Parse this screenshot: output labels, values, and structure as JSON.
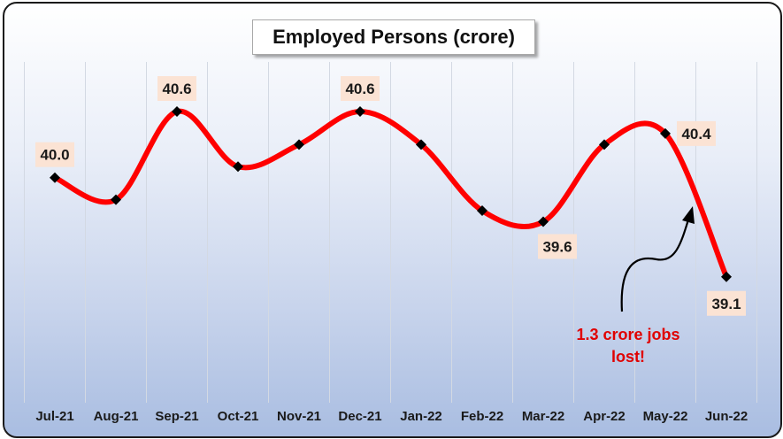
{
  "chart_data": {
    "type": "line",
    "title": "Employed Persons (crore)",
    "categories": [
      "Jul-21",
      "Aug-21",
      "Sep-21",
      "Oct-21",
      "Nov-21",
      "Dec-21",
      "Jan-22",
      "Feb-22",
      "Mar-22",
      "Apr-22",
      "May-22",
      "Jun-22"
    ],
    "values": [
      40.0,
      39.8,
      40.6,
      40.1,
      40.3,
      40.6,
      40.3,
      39.7,
      39.6,
      40.3,
      40.4,
      39.1
    ],
    "data_labels": [
      {
        "index": 0,
        "text": "40.0"
      },
      {
        "index": 2,
        "text": "40.6"
      },
      {
        "index": 5,
        "text": "40.6"
      },
      {
        "index": 8,
        "text": "39.6"
      },
      {
        "index": 10,
        "text": "40.4"
      },
      {
        "index": 11,
        "text": "39.1"
      }
    ],
    "annotation": {
      "line1": "1.3 crore jobs",
      "line2": "lost!"
    },
    "line_color": "#ff0000",
    "annotation_color": "#e00000",
    "label_bg": "#fbe3d4",
    "grid": true,
    "legend": "none"
  }
}
